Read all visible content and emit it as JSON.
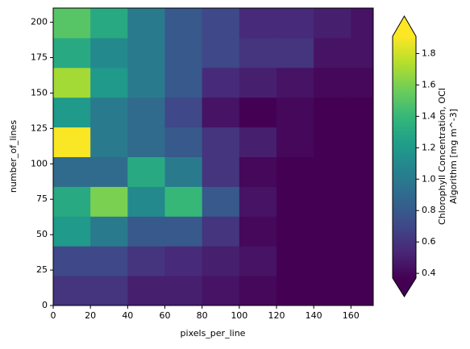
{
  "chart_data": {
    "type": "heatmap",
    "xlabel": "pixels_per_line",
    "ylabel": "number_of_lines",
    "colorbar_label": [
      "Chlorophyll Concentration, OCI",
      "Algorithm [mg m^-3]"
    ],
    "colormap": "viridis",
    "xbins": [
      0,
      20,
      40,
      60,
      80,
      100,
      120,
      140,
      160,
      172
    ],
    "ybins": [
      0,
      21,
      42,
      63,
      84,
      105,
      126,
      147,
      168,
      189,
      210
    ],
    "z": [
      [
        0.6,
        0.6,
        0.5,
        0.5,
        0.45,
        0.4,
        0.35,
        0.35,
        0.35
      ],
      [
        0.7,
        0.7,
        0.6,
        0.55,
        0.5,
        0.45,
        0.35,
        0.35,
        0.35
      ],
      [
        1.2,
        1.0,
        0.8,
        0.8,
        0.6,
        0.4,
        0.35,
        0.35,
        0.35
      ],
      [
        1.3,
        1.6,
        1.1,
        1.4,
        0.8,
        0.45,
        0.35,
        0.35,
        0.35
      ],
      [
        0.9,
        0.9,
        1.3,
        1.0,
        0.6,
        0.4,
        0.35,
        0.35,
        0.35
      ],
      [
        1.9,
        1.0,
        0.9,
        0.8,
        0.6,
        0.5,
        0.4,
        0.35,
        0.35
      ],
      [
        1.2,
        1.0,
        0.9,
        0.7,
        0.45,
        0.35,
        0.4,
        0.35,
        0.35
      ],
      [
        1.7,
        1.2,
        1.0,
        0.8,
        0.55,
        0.5,
        0.45,
        0.4,
        0.4
      ],
      [
        1.3,
        1.1,
        1.0,
        0.8,
        0.7,
        0.6,
        0.6,
        0.45,
        0.45
      ],
      [
        1.5,
        1.3,
        1.0,
        0.8,
        0.7,
        0.55,
        0.55,
        0.5,
        0.45
      ]
    ],
    "xlim": [
      0,
      172
    ],
    "ylim": [
      0,
      210
    ],
    "xticks": [
      0,
      20,
      40,
      60,
      80,
      100,
      120,
      140,
      160
    ],
    "yticks": [
      0,
      25,
      50,
      75,
      100,
      125,
      150,
      175,
      200
    ],
    "clim": [
      0.37,
      1.91
    ],
    "cticks": [
      0.4,
      0.6,
      0.8,
      {
        "value": 1,
        "label": "1.0"
      },
      1.2,
      1.4,
      1.6,
      1.8
    ]
  }
}
